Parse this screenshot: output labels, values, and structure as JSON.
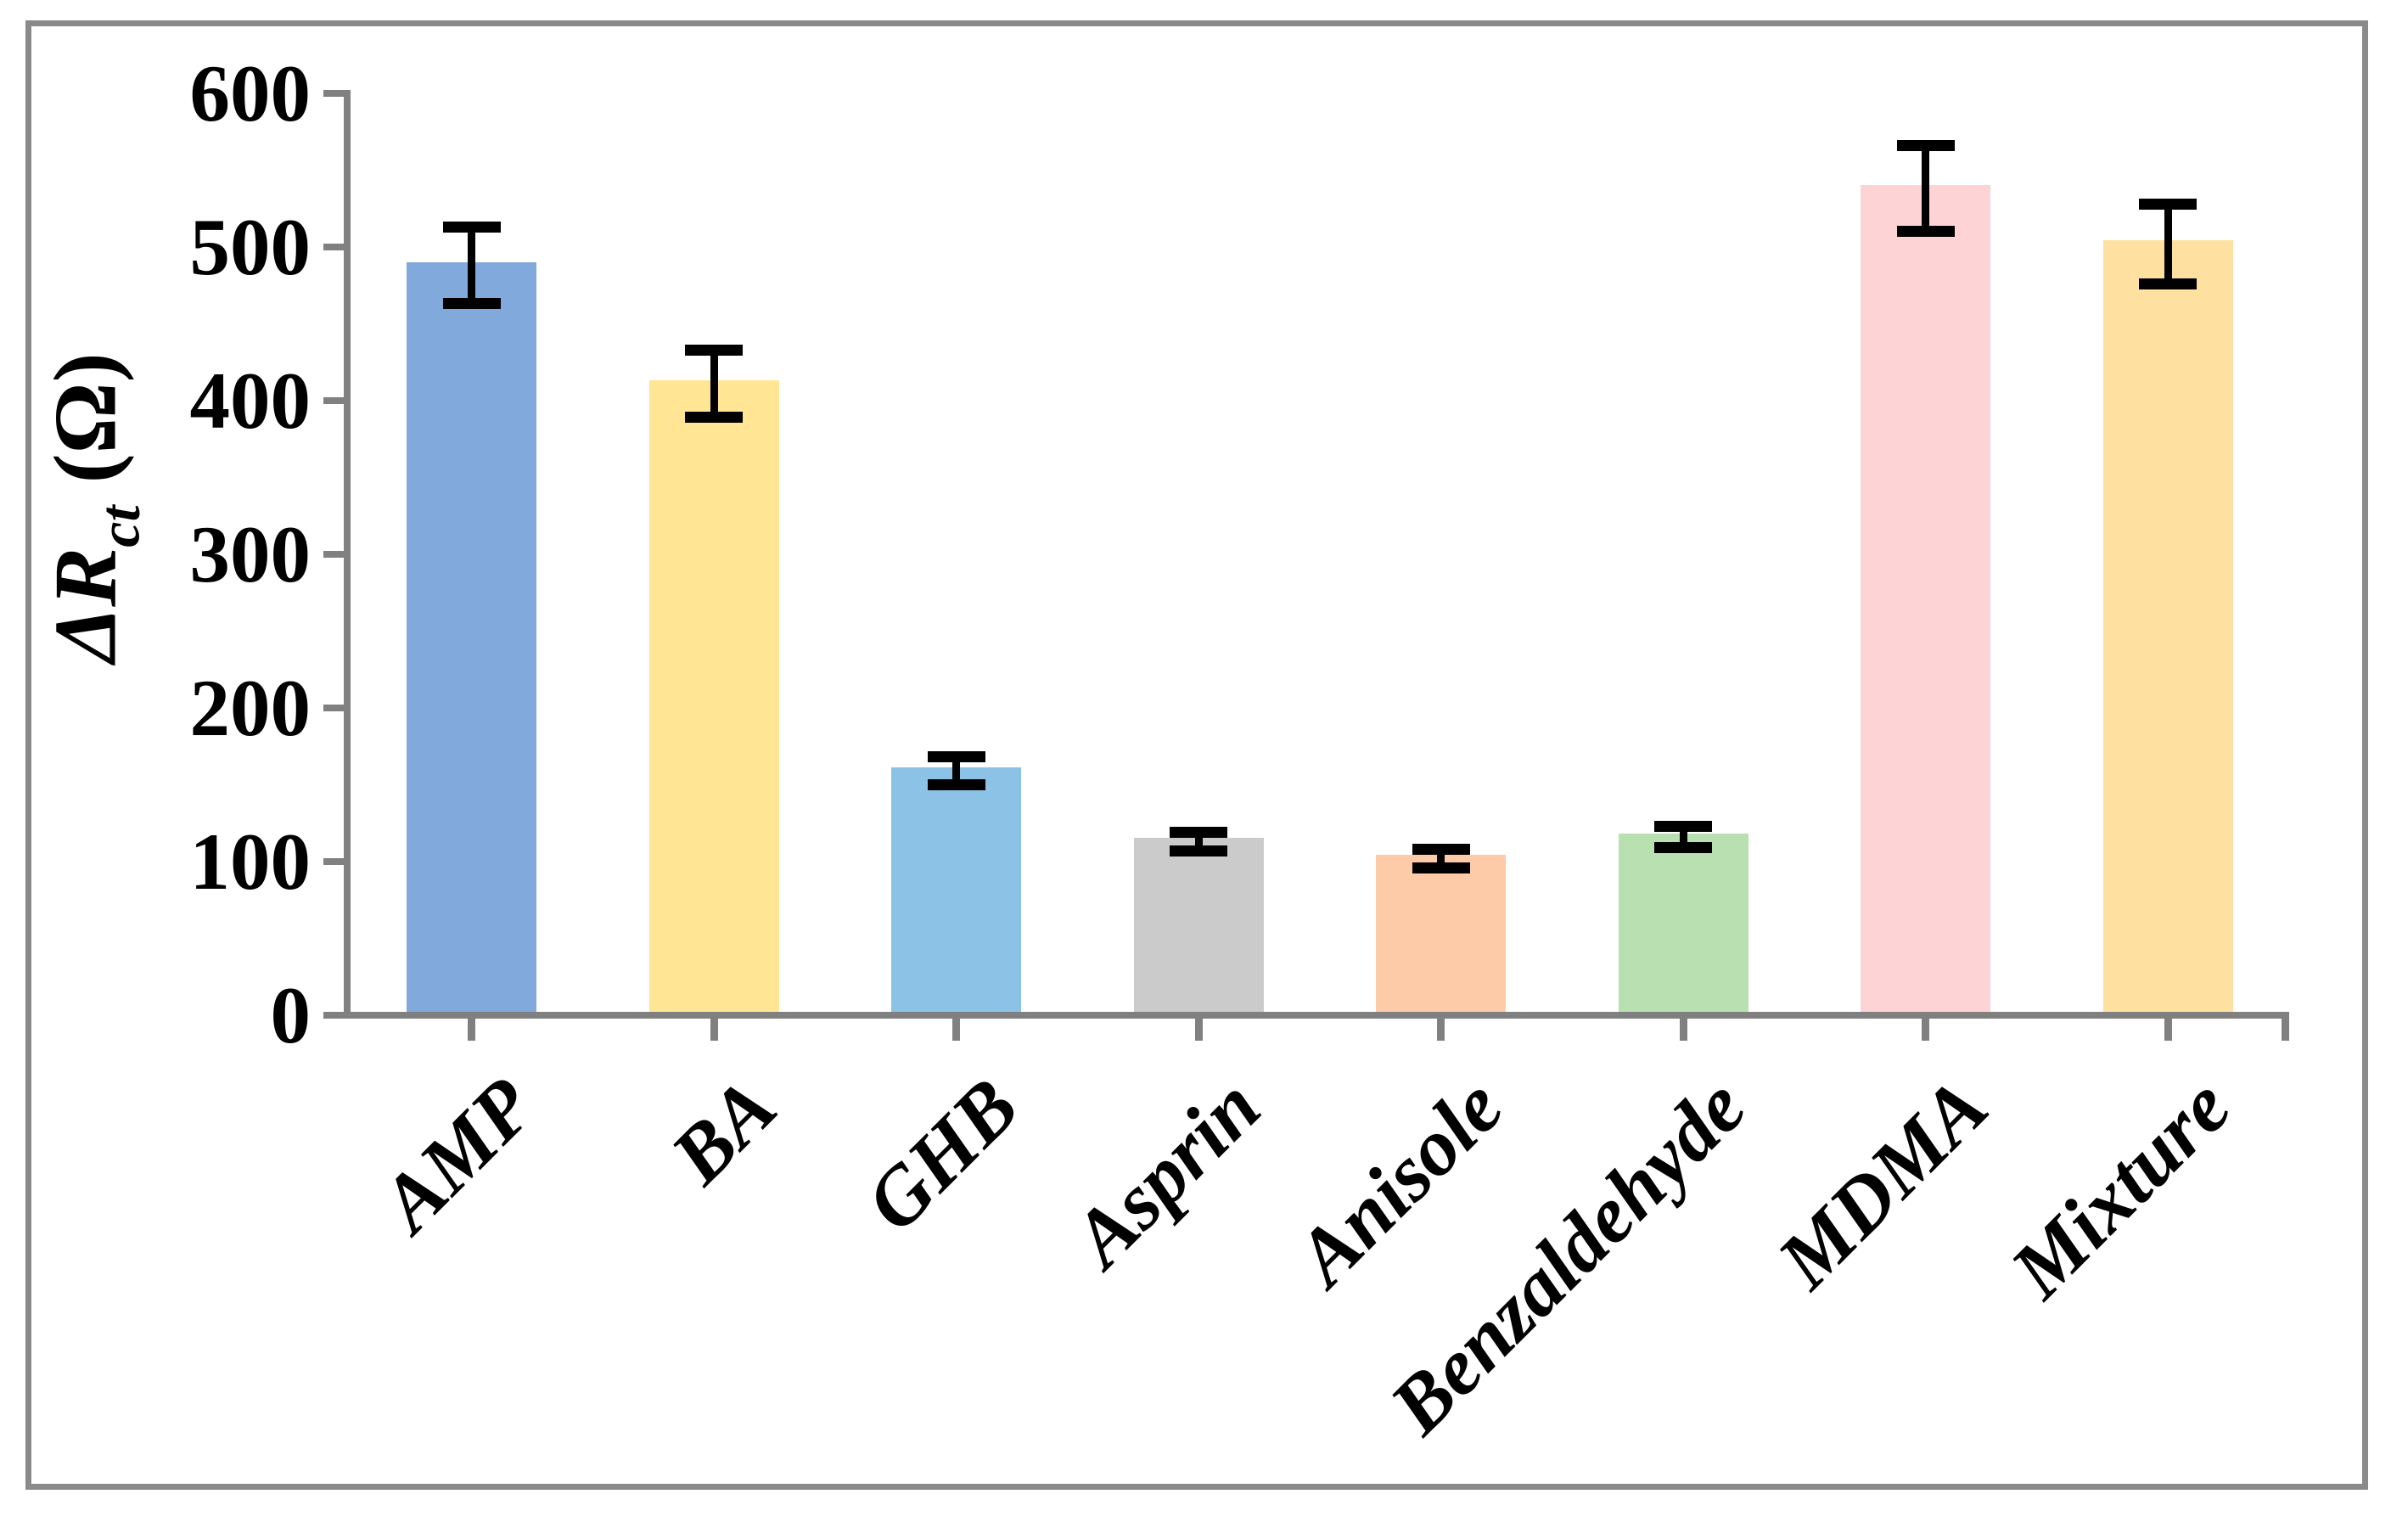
{
  "figure": {
    "background": "#FFFFFF",
    "border_color": "#8A8A8A"
  },
  "chart_data": {
    "type": "bar",
    "title": "",
    "ylabel_main": "ΔR",
    "ylabel_sub": "ct",
    "ylabel_unit": "(Ω)",
    "ylabel_full": "ΔRct (Ω)",
    "ylim": [
      0,
      600
    ],
    "yticks": [
      0,
      100,
      200,
      300,
      400,
      500,
      600
    ],
    "categories": [
      "AMP",
      "BA",
      "GHB",
      "Asprin",
      "Anisole",
      "Benzaldehyde",
      "MDMA",
      "Mixture"
    ],
    "values": [
      488,
      411,
      159,
      113,
      102,
      116,
      538,
      502
    ],
    "errors": [
      25,
      22,
      9,
      6,
      6,
      7,
      28,
      26
    ],
    "bar_colors": [
      "#81A9DC",
      "#FFE594",
      "#8CC2E6",
      "#CBCBCB",
      "#FECBA8",
      "#B8E0B0",
      "#FED3D6",
      "#FEE1A0"
    ],
    "axis_color": "#808080",
    "error_bar_color": "#000000",
    "grid": false,
    "legend_position": "none"
  }
}
